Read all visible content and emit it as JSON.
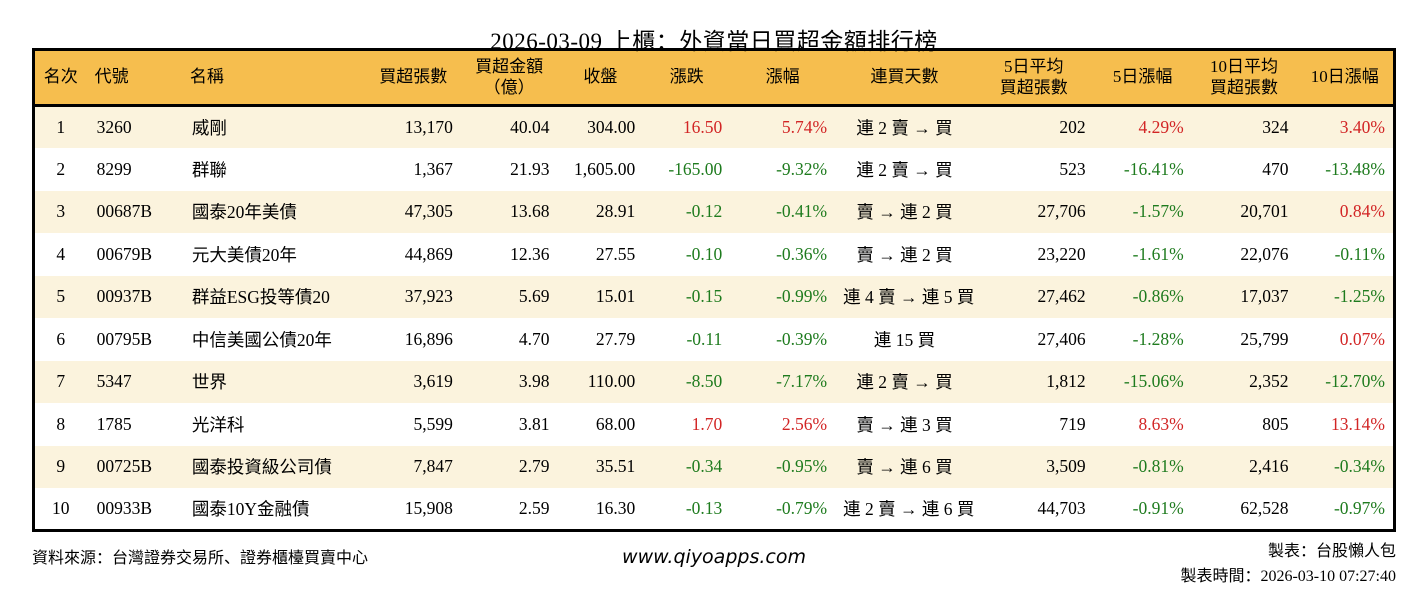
{
  "title": "2026-03-09 上櫃：外資當日買超金額排行榜",
  "chart_data": {
    "type": "table",
    "title": "2026-03-09 上櫃：外資當日買超金額排行榜",
    "columns": [
      "名次",
      "代號",
      "名稱",
      "買超張數",
      "買超金額\n（億）",
      "收盤",
      "漲跌",
      "漲幅",
      "連買天數",
      "5日平均\n買超張數",
      "5日漲幅",
      "10日平均\n買超張數",
      "10日漲幅"
    ],
    "rows": [
      [
        "1",
        "3260",
        "威剛",
        "13,170",
        "40.04",
        "304.00",
        "16.50",
        "5.74%",
        "連 2 賣 → 買",
        "202",
        "4.29%",
        "324",
        "3.40%"
      ],
      [
        "2",
        "8299",
        "群聯",
        "1,367",
        "21.93",
        "1,605.00",
        "-165.00",
        "-9.32%",
        "連 2 賣 → 買",
        "523",
        "-16.41%",
        "470",
        "-13.48%"
      ],
      [
        "3",
        "00687B",
        "國泰20年美債",
        "47,305",
        "13.68",
        "28.91",
        "-0.12",
        "-0.41%",
        "賣 → 連 2 買",
        "27,706",
        "-1.57%",
        "20,701",
        "0.84%"
      ],
      [
        "4",
        "00679B",
        "元大美債20年",
        "44,869",
        "12.36",
        "27.55",
        "-0.10",
        "-0.36%",
        "賣 → 連 2 買",
        "23,220",
        "-1.61%",
        "22,076",
        "-0.11%"
      ],
      [
        "5",
        "00937B",
        "群益ESG投等債20",
        "37,923",
        "5.69",
        "15.01",
        "-0.15",
        "-0.99%",
        "連 4 賣 → 連 5 買",
        "27,462",
        "-0.86%",
        "17,037",
        "-1.25%"
      ],
      [
        "6",
        "00795B",
        "中信美國公債20年",
        "16,896",
        "4.70",
        "27.79",
        "-0.11",
        "-0.39%",
        "連 15 買",
        "27,406",
        "-1.28%",
        "25,799",
        "0.07%"
      ],
      [
        "7",
        "5347",
        "世界",
        "3,619",
        "3.98",
        "110.00",
        "-8.50",
        "-7.17%",
        "連 2 賣 → 買",
        "1,812",
        "-15.06%",
        "2,352",
        "-12.70%"
      ],
      [
        "8",
        "1785",
        "光洋科",
        "5,599",
        "3.81",
        "68.00",
        "1.70",
        "2.56%",
        "賣 → 連 3 買",
        "719",
        "8.63%",
        "805",
        "13.14%"
      ],
      [
        "9",
        "00725B",
        "國泰投資級公司債",
        "7,847",
        "2.79",
        "35.51",
        "-0.34",
        "-0.95%",
        "賣 → 連 6 買",
        "3,509",
        "-0.81%",
        "2,416",
        "-0.34%"
      ],
      [
        "10",
        "00933B",
        "國泰10Y金融債",
        "15,908",
        "2.59",
        "16.30",
        "-0.13",
        "-0.79%",
        "連 2 賣 → 連 6 買",
        "44,703",
        "-0.91%",
        "62,528",
        "-0.97%"
      ]
    ]
  },
  "footer": {
    "source": "資料來源：台灣證券交易所、證券櫃檯買賣中心",
    "website": "www.qiyoapps.com",
    "author": "製表：台股懶人包",
    "generated": "製表時間：2026-03-10 07:27:40"
  },
  "colors": {
    "up": "#d22525",
    "down": "#1e7b1e",
    "header_bg": "#f6be4e",
    "row_alt_bg": "#fbf3dd",
    "border": "#000000"
  }
}
